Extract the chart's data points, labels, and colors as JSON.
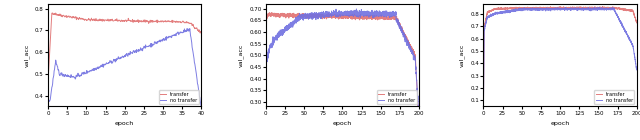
{
  "fig_width": 6.4,
  "fig_height": 1.4,
  "dpi": 100,
  "plots": [
    {
      "xlabel": "epoch",
      "ylabel": "val_acc",
      "xlim": [
        0,
        40
      ],
      "ylim": [
        0.35,
        0.82
      ],
      "transfer_color": "#e07070",
      "no_transfer_color": "#7070e0"
    },
    {
      "xlabel": "epoch",
      "ylabel": "val_acc",
      "xlim": [
        0,
        200
      ],
      "ylim": [
        0.28,
        0.72
      ],
      "transfer_color": "#e07070",
      "no_transfer_color": "#7070e0"
    },
    {
      "xlabel": "epoch",
      "ylabel": "val_acc",
      "xlim": [
        0,
        200
      ],
      "ylim": [
        0.05,
        0.88
      ],
      "transfer_color": "#e07070",
      "no_transfer_color": "#7070e0"
    }
  ],
  "legend_labels": [
    "transfer",
    "no transfer"
  ]
}
